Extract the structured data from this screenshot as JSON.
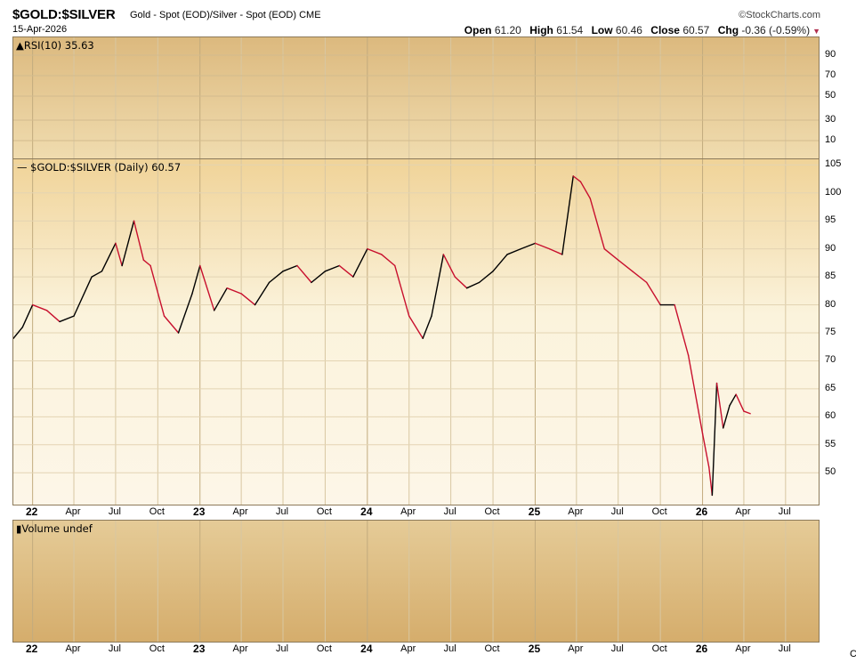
{
  "header": {
    "symbol": "$GOLD:$SILVER",
    "description": "Gold - Spot (EOD)/Silver - Spot (EOD)",
    "exchange": "CME",
    "date": "15-Apr-2026",
    "brand": "©StockCharts.com",
    "open_label": "Open",
    "open": "61.20",
    "high_label": "High",
    "high": "61.54",
    "low_label": "Low",
    "low": "60.46",
    "close_label": "Close",
    "close": "60.57",
    "chg_label": "Chg",
    "chg": "-0.36 (-0.59%)",
    "down_color": "#b0304f"
  },
  "rsi_panel": {
    "label": "RSI(10) 35.63",
    "ticks": [
      "90",
      "70",
      "50",
      "30",
      "10"
    ]
  },
  "main_panel": {
    "legend": "$GOLD:$SILVER (Daily) 60.57"
  },
  "volume_panel": {
    "label": "Volume undef"
  },
  "x_axis_labels": [
    "22",
    "Apr",
    "Jul",
    "Oct",
    "23",
    "Apr",
    "Jul",
    "Oct",
    "24",
    "Apr",
    "Jul",
    "Oct",
    "25",
    "Apr",
    "Jul",
    "Oct",
    "26",
    "Apr",
    "Jul"
  ],
  "footer_mark": "C",
  "chart_data": {
    "type": "line",
    "title": "$GOLD:$SILVER",
    "series": [
      {
        "name": "$GOLD:$SILVER (Daily)",
        "x": [
          "2021-11-20",
          "2021-12-10",
          "2022-01-01",
          "2022-02-01",
          "2022-03-01",
          "2022-04-01",
          "2022-05-10",
          "2022-06-01",
          "2022-07-01",
          "2022-07-15",
          "2022-08-10",
          "2022-08-31",
          "2022-09-15",
          "2022-10-15",
          "2022-11-15",
          "2022-12-15",
          "2023-01-01",
          "2023-02-01",
          "2023-03-01",
          "2023-04-01",
          "2023-05-01",
          "2023-06-01",
          "2023-07-01",
          "2023-08-01",
          "2023-09-01",
          "2023-10-01",
          "2023-11-01",
          "2023-12-01",
          "2024-01-01",
          "2024-02-01",
          "2024-03-01",
          "2024-04-01",
          "2024-05-01",
          "2024-05-20",
          "2024-06-15",
          "2024-07-10",
          "2024-08-05",
          "2024-09-01",
          "2024-10-01",
          "2024-11-01",
          "2024-12-01",
          "2025-01-01",
          "2025-02-01",
          "2025-03-01",
          "2025-03-25",
          "2025-04-10",
          "2025-05-01",
          "2025-06-01",
          "2025-07-01",
          "2025-08-01",
          "2025-09-01",
          "2025-10-01",
          "2025-11-01",
          "2025-12-01",
          "2026-01-01",
          "2026-01-15",
          "2026-01-22",
          "2026-02-01",
          "2026-02-15",
          "2026-03-01",
          "2026-03-15",
          "2026-04-01",
          "2026-04-15"
        ],
        "y": [
          74,
          76,
          80,
          79,
          77,
          78,
          85,
          86,
          91,
          87,
          95,
          88,
          87,
          78,
          75,
          82,
          87,
          79,
          83,
          82,
          80,
          84,
          86,
          87,
          84,
          86,
          87,
          85,
          90,
          89,
          87,
          78,
          74,
          78,
          89,
          85,
          83,
          84,
          86,
          89,
          90,
          91,
          90,
          89,
          103,
          102,
          99,
          90,
          88,
          86,
          84,
          80,
          80,
          71,
          57,
          51,
          46,
          66,
          58,
          62,
          64,
          61,
          60.57
        ]
      }
    ],
    "y_range": [
      44,
      106
    ],
    "y_ticks": [
      50,
      55,
      60,
      65,
      70,
      75,
      80,
      85,
      90,
      95,
      100,
      105
    ],
    "x_range": [
      "2021-11-20",
      "2026-09-15"
    ],
    "line_color_up": "#000000",
    "line_color_down": "#c8102e",
    "grid": true
  }
}
